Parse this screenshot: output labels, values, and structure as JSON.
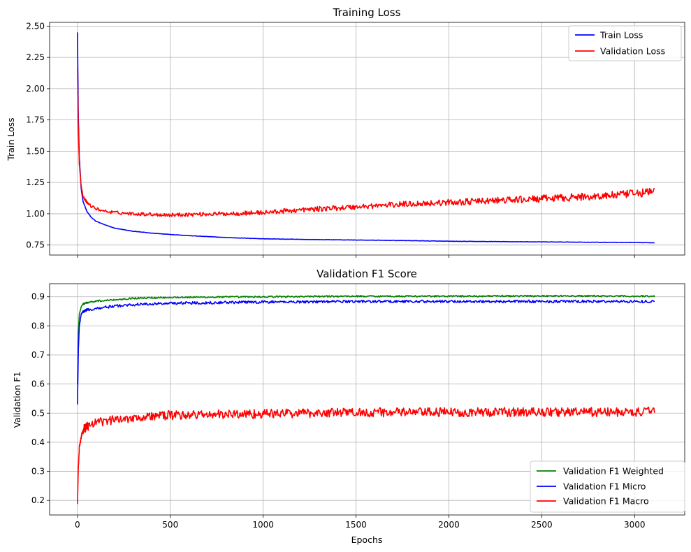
{
  "chart_data": [
    {
      "type": "line",
      "title": "Training Loss",
      "xlabel": "",
      "ylabel": "Train Loss",
      "xlim": [
        -150,
        3270
      ],
      "ylim": [
        0.67,
        2.53
      ],
      "xticks": [
        0,
        500,
        1000,
        1500,
        2000,
        2500,
        3000
      ],
      "yticks": [
        0.75,
        1.0,
        1.25,
        1.5,
        1.75,
        2.0,
        2.25,
        2.5
      ],
      "ytick_labels": [
        "0.75",
        "1.00",
        "1.25",
        "1.50",
        "1.75",
        "2.00",
        "2.25",
        "2.50"
      ],
      "grid": true,
      "legend": "top-right",
      "series": [
        {
          "name": "Train Loss",
          "color": "#0000ff",
          "x": [
            0,
            5,
            10,
            20,
            30,
            50,
            75,
            100,
            150,
            200,
            300,
            400,
            500,
            600,
            800,
            1000,
            1200,
            1500,
            1800,
            2000,
            2500,
            3000,
            3110
          ],
          "y": [
            2.45,
            1.75,
            1.45,
            1.2,
            1.1,
            1.02,
            0.97,
            0.94,
            0.91,
            0.885,
            0.86,
            0.845,
            0.835,
            0.825,
            0.81,
            0.8,
            0.795,
            0.79,
            0.785,
            0.78,
            0.775,
            0.77,
            0.768
          ]
        },
        {
          "name": "Validation Loss",
          "color": "#ff0000",
          "x": [
            0,
            5,
            10,
            20,
            30,
            50,
            75,
            100,
            150,
            200,
            300,
            400,
            500,
            600,
            800,
            1000,
            1200,
            1500,
            1800,
            2000,
            2500,
            2800,
            3000,
            3110
          ],
          "y": [
            2.17,
            1.65,
            1.4,
            1.22,
            1.14,
            1.09,
            1.06,
            1.04,
            1.02,
            1.01,
            1.0,
            0.995,
            0.99,
            0.995,
            1.0,
            1.01,
            1.03,
            1.055,
            1.08,
            1.09,
            1.12,
            1.14,
            1.16,
            1.18
          ]
        }
      ]
    },
    {
      "type": "line",
      "title": "Validation F1 Score",
      "xlabel": "Epochs",
      "ylabel": "Validation F1",
      "xlim": [
        -150,
        3270
      ],
      "ylim": [
        0.15,
        0.945
      ],
      "xticks": [
        0,
        500,
        1000,
        1500,
        2000,
        2500,
        3000
      ],
      "yticks": [
        0.2,
        0.3,
        0.4,
        0.5,
        0.6,
        0.7,
        0.8,
        0.9
      ],
      "ytick_labels": [
        "0.2",
        "0.3",
        "0.4",
        "0.5",
        "0.6",
        "0.7",
        "0.8",
        "0.9"
      ],
      "grid": true,
      "legend": "bottom-right",
      "series": [
        {
          "name": "Validation F1 Weighted",
          "color": "#008000",
          "x": [
            0,
            5,
            10,
            20,
            30,
            50,
            100,
            200,
            300,
            500,
            1000,
            1500,
            2000,
            2500,
            3000,
            3110
          ],
          "y": [
            0.6,
            0.78,
            0.84,
            0.865,
            0.875,
            0.88,
            0.885,
            0.89,
            0.895,
            0.898,
            0.9,
            0.902,
            0.902,
            0.903,
            0.902,
            0.902
          ]
        },
        {
          "name": "Validation F1 Micro",
          "color": "#0000ff",
          "x": [
            0,
            5,
            10,
            20,
            30,
            50,
            100,
            200,
            300,
            500,
            1000,
            1500,
            2000,
            2500,
            3000,
            3110
          ],
          "y": [
            0.53,
            0.72,
            0.8,
            0.84,
            0.85,
            0.855,
            0.86,
            0.868,
            0.873,
            0.878,
            0.882,
            0.884,
            0.884,
            0.884,
            0.884,
            0.884
          ]
        },
        {
          "name": "Validation F1 Macro",
          "color": "#ff0000",
          "x": [
            0,
            5,
            10,
            20,
            30,
            50,
            100,
            200,
            300,
            500,
            1000,
            1500,
            2000,
            2500,
            3000,
            3110
          ],
          "y": [
            0.185,
            0.32,
            0.38,
            0.42,
            0.44,
            0.455,
            0.465,
            0.478,
            0.485,
            0.493,
            0.498,
            0.503,
            0.503,
            0.504,
            0.503,
            0.505
          ]
        }
      ]
    }
  ]
}
